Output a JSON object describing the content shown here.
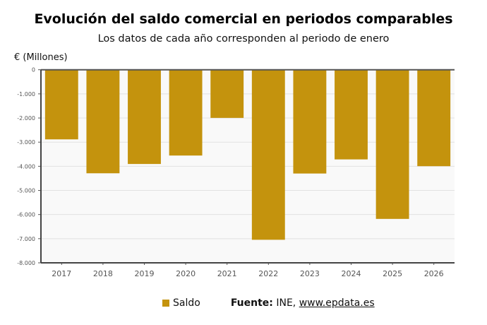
{
  "chart_data": {
    "type": "bar",
    "title": "Evolución del saldo comercial en periodos comparables",
    "subtitle": "Los datos de cada año corresponden al periodo de enero",
    "ylabel": "€ (Millones)",
    "xlabel": "",
    "categories": [
      "2017",
      "2018",
      "2019",
      "2020",
      "2021",
      "2022",
      "2023",
      "2024",
      "2025",
      "2026"
    ],
    "series": [
      {
        "name": "Saldo",
        "values": [
          -2885,
          -4290,
          -3905,
          -3555,
          -1995,
          -7045,
          -4300,
          -3715,
          -6180,
          -3995
        ],
        "color": "#c4930d"
      }
    ],
    "ylim": [
      -8000,
      0
    ],
    "yticks": [
      0,
      -1000,
      -2000,
      -3000,
      -4000,
      -5000,
      -6000,
      -7000,
      -8000
    ],
    "ytick_labels": [
      "0",
      "-1.000",
      "-2.000",
      "-3.000",
      "-4.000",
      "-5.000",
      "-6.000",
      "-7.000",
      "-8.000"
    ],
    "grid": true,
    "legend": "bottom"
  },
  "footer": {
    "source_label": "Fuente:",
    "source_text": " INE, ",
    "source_link": "www.epdata.es"
  }
}
